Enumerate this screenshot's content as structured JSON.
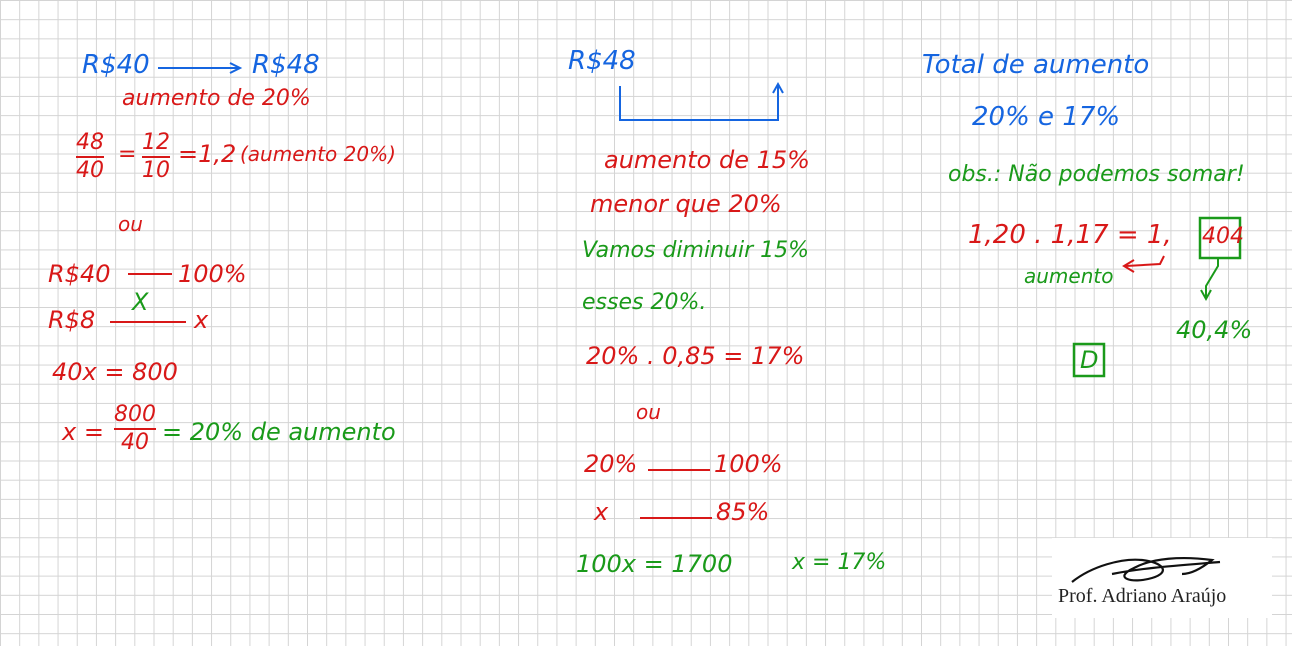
{
  "left": {
    "from_price": "R$40",
    "to_price": "R$48",
    "increase_note": "aumento de 20%",
    "fraction1_num": "48",
    "fraction1_den": "40",
    "fraction2_num": "12",
    "fraction2_den": "10",
    "ratio_result": "=1,2",
    "ratio_note": "(aumento 20%)",
    "or_word": "ou",
    "rule_row1_left": "R$40",
    "rule_row1_right": "100%",
    "rule_row2_left": "R$8",
    "rule_row2_right": "x",
    "cross_mark": "X",
    "equation1": "40x = 800",
    "x_label": "x =",
    "fraction3_num": "800",
    "fraction3_den": "40",
    "result": "= 20% de aumento"
  },
  "middle": {
    "price": "R$48",
    "increase_note": "aumento de 15%",
    "less_note": "menor que 20%",
    "reduce_note": "Vamos diminuir 15%",
    "of_note": "esses 20%.",
    "calc": "20% . 0,85 = 17%",
    "or_word": "ou",
    "rule_row1_left": "20%",
    "rule_row1_right": "100%",
    "rule_row2_left": "x",
    "rule_row2_right": "85%",
    "equation": "100x = 1700",
    "result": "x = 17%"
  },
  "right": {
    "title_line1": "Total de aumento",
    "title_line2": "20% e 17%",
    "observation": "obs.: Não podemos somar!",
    "calc_main": "1,20 . 1,17 = 1,",
    "calc_boxed": "404",
    "increase_label": "aumento",
    "percent_result": "40,4%",
    "answer": "D"
  },
  "signature": {
    "name": "Prof. Adriano Araújo"
  },
  "colors": {
    "blue": "#1565e0",
    "red": "#d81818",
    "green": "#1a9a1a",
    "grid": "#d4d4d4"
  }
}
